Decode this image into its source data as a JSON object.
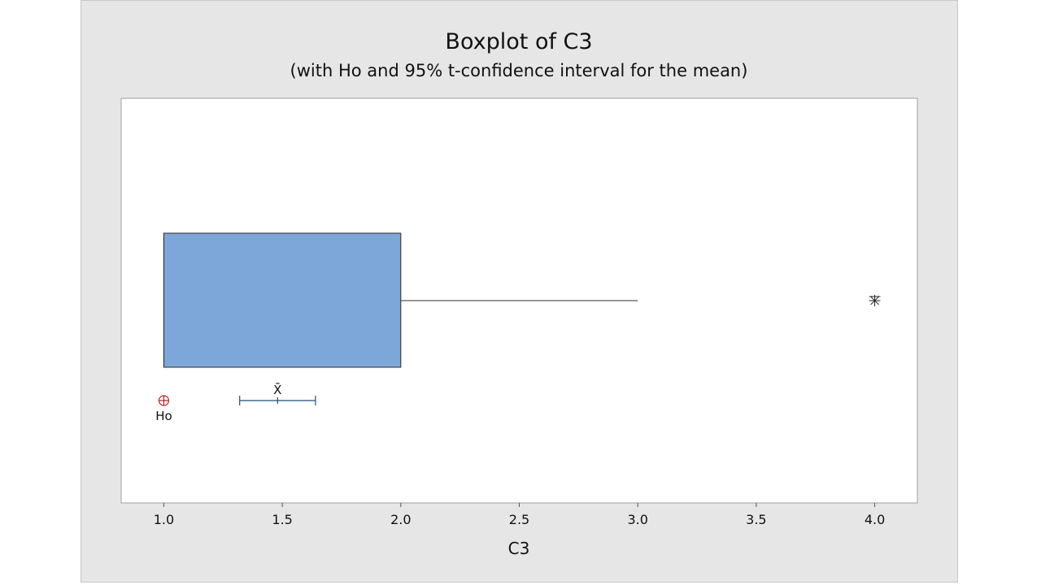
{
  "chart_data": {
    "type": "boxplot",
    "orientation": "horizontal",
    "title": "Boxplot of C3",
    "subtitle": "(with Ho and 95% t-confidence interval for the mean)",
    "xlabel": "C3",
    "xlim": [
      0.82,
      4.18
    ],
    "xticks": [
      1.0,
      1.5,
      2.0,
      2.5,
      3.0,
      3.5,
      4.0
    ],
    "xtick_labels": [
      "1.0",
      "1.5",
      "2.0",
      "2.5",
      "3.0",
      "3.5",
      "4.0"
    ],
    "box": {
      "q1": 1.0,
      "median": 1.0,
      "q3": 2.0,
      "whisker_low": 1.0,
      "whisker_high": 3.0,
      "outliers": [
        4.0
      ]
    },
    "ho": {
      "value": 1.0,
      "label": "Ho"
    },
    "mean_ci": {
      "mean": 1.48,
      "lower": 1.32,
      "upper": 1.64,
      "label": "X̄"
    },
    "colors": {
      "box_fill": "#7da7d9",
      "box_edge": "#2b2b2b",
      "ci_line": "#1f4e79",
      "ho_marker": "#b22222",
      "plot_bg": "#ffffff",
      "figure_bg": "#e6e6e6"
    },
    "grid": false,
    "legend": "none"
  }
}
